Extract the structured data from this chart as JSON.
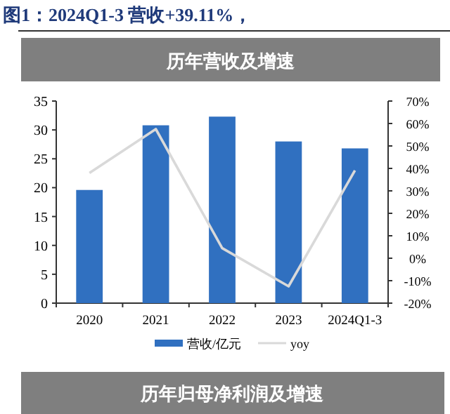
{
  "chart_data": {
    "type": "bar",
    "title": "图1：2024Q1-3 营收+39.11%，",
    "subtitle": "历年营收及增速",
    "categories": [
      "2020",
      "2021",
      "2022",
      "2023",
      "2024Q1-3"
    ],
    "series": [
      {
        "name": "营收/亿元",
        "color": "#3070c0",
        "values": [
          19.6,
          30.8,
          32.3,
          28.0,
          26.8
        ]
      },
      {
        "name": "yoy",
        "type": "line",
        "axis": "y2",
        "color": "#d9d9d9",
        "values": [
          38,
          57.5,
          4.5,
          -12.5,
          39.1
        ]
      }
    ],
    "ylim": [
      0,
      35
    ],
    "yticks": [
      0,
      5,
      10,
      15,
      20,
      25,
      30,
      35
    ],
    "y2lim": [
      -20,
      70
    ],
    "y2ticks": [
      {
        "value": -20,
        "label": "-20%"
      },
      {
        "value": -10,
        "label": "-10%"
      },
      {
        "value": 0,
        "label": "0%"
      },
      {
        "value": 10,
        "label": "10%"
      },
      {
        "value": 20,
        "label": "20%"
      },
      {
        "value": 30,
        "label": "30%"
      },
      {
        "value": 40,
        "label": "40%"
      },
      {
        "value": 50,
        "label": "50%"
      },
      {
        "value": 60,
        "label": "60%"
      },
      {
        "value": 70,
        "label": "70%"
      }
    ],
    "grid": false,
    "legend": "bottom",
    "marker": "none",
    "annotations": [
      "历年归母净利润及增速"
    ]
  }
}
